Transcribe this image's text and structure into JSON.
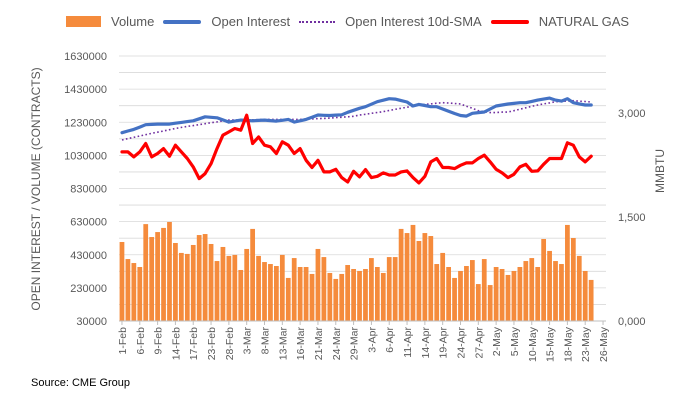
{
  "legend": {
    "volume": "Volume",
    "open_interest": "Open Interest",
    "sma": "Open Interest 10d-SMA",
    "price": "NATURAL GAS"
  },
  "source": "Source: CME Group",
  "chart_data": {
    "type": "bar+line",
    "title": "",
    "ylabel_left": "OPEN INTEREST / VOLUME (CONTRACTS)",
    "ylabel_right": "MMBTU",
    "ylim_left": [
      30000,
      1630000
    ],
    "ylim_right": [
      0,
      3825
    ],
    "left_ticks": [
      "1630000",
      "1430000",
      "1230000",
      "1030000",
      "830000",
      "630000",
      "430000",
      "230000",
      "30000"
    ],
    "left_tick_values": [
      1630000,
      1430000,
      1230000,
      1030000,
      830000,
      630000,
      430000,
      230000,
      30000
    ],
    "right_ticks": [
      "3,000",
      "1,500",
      "0,000"
    ],
    "right_tick_values": [
      3000,
      1500,
      0
    ],
    "x_tick_labels": [
      "1-Feb",
      "6-Feb",
      "9-Feb",
      "14-Feb",
      "17-Feb",
      "23-Feb",
      "28-Feb",
      "3-Mar",
      "8-Mar",
      "13-Mar",
      "16-Mar",
      "21-Mar",
      "24-Mar",
      "29-Mar",
      "3-Apr",
      "6-Apr",
      "11-Apr",
      "14-Apr",
      "19-Apr",
      "24-Apr",
      "27-Apr",
      "2-May",
      "5-May",
      "10-May",
      "15-May",
      "18-May",
      "23-May",
      "26-May"
    ],
    "grid": true,
    "legend_position": "top",
    "colors": {
      "volume": "#f58b3c",
      "open_interest": "#4472c4",
      "sma": "#7030a0",
      "price": "#ff0000",
      "grid": "#d9d9d9"
    },
    "series": [
      {
        "name": "Volume",
        "type": "bar",
        "axis": "left",
        "values": [
          507000,
          404000,
          380000,
          356000,
          615000,
          537000,
          567000,
          592000,
          628000,
          501000,
          441000,
          435000,
          489000,
          549000,
          555000,
          495000,
          392000,
          477000,
          423000,
          429000,
          338000,
          465000,
          586000,
          423000,
          386000,
          374000,
          362000,
          429000,
          290000,
          410000,
          356000,
          356000,
          314000,
          465000,
          416000,
          320000,
          284000,
          314000,
          368000,
          344000,
          332000,
          344000,
          410000,
          356000,
          320000,
          416000,
          416000,
          586000,
          561000,
          610000,
          513000,
          561000,
          543000,
          374000,
          441000,
          356000,
          290000,
          332000,
          362000,
          398000,
          253000,
          404000,
          247000,
          356000,
          344000,
          308000,
          332000,
          356000,
          392000,
          410000,
          356000,
          525000,
          453000,
          392000,
          374000,
          610000,
          531000,
          423000,
          332000,
          278000
        ]
      },
      {
        "name": "Open Interest",
        "type": "line",
        "axis": "left",
        "values": [
          1167000,
          1177000,
          1187000,
          1201000,
          1215000,
          1217000,
          1219000,
          1219000,
          1219000,
          1224000,
          1229000,
          1234000,
          1239000,
          1251000,
          1263000,
          1260000,
          1257000,
          1244000,
          1231000,
          1237000,
          1243000,
          1241000,
          1239000,
          1241000,
          1243000,
          1240000,
          1237000,
          1242000,
          1247000,
          1231000,
          1239000,
          1247000,
          1260000,
          1274000,
          1272000,
          1271000,
          1273000,
          1275000,
          1290000,
          1302000,
          1314000,
          1324000,
          1339000,
          1354000,
          1363000,
          1372000,
          1370000,
          1361000,
          1352000,
          1328000,
          1338000,
          1331000,
          1324000,
          1324000,
          1310000,
          1296000,
          1283000,
          1271000,
          1267000,
          1284000,
          1288000,
          1292000,
          1310000,
          1328000,
          1334000,
          1340000,
          1344000,
          1348000,
          1348000,
          1356000,
          1364000,
          1370000,
          1376000,
          1364000,
          1358000,
          1372000,
          1348000,
          1341000,
          1334000,
          1334000
        ]
      },
      {
        "name": "Open Interest 10d-SMA",
        "type": "line",
        "axis": "left",
        "values": [
          1123000,
          1131000,
          1139000,
          1147000,
          1155000,
          1163000,
          1170000,
          1177000,
          1185000,
          1192000,
          1199000,
          1205000,
          1210000,
          1216000,
          1221000,
          1227000,
          1232000,
          1238000,
          1243000,
          1244000,
          1244000,
          1245000,
          1245000,
          1246000,
          1246000,
          1247000,
          1247000,
          1247000,
          1247000,
          1247000,
          1247000,
          1249000,
          1250000,
          1252000,
          1253000,
          1255000,
          1258000,
          1260000,
          1263000,
          1266000,
          1274000,
          1278000,
          1284000,
          1289000,
          1294000,
          1301000,
          1308000,
          1314000,
          1321000,
          1327000,
          1334000,
          1338000,
          1341000,
          1345000,
          1348000,
          1346000,
          1343000,
          1341000,
          1327000,
          1314000,
          1300000,
          1294000,
          1288000,
          1289000,
          1291000,
          1292000,
          1300000,
          1309000,
          1317000,
          1326000,
          1334000,
          1341000,
          1347000,
          1354000,
          1356000,
          1358000,
          1360000,
          1357000,
          1355000,
          1352000
        ]
      },
      {
        "name": "NATURAL GAS",
        "type": "line",
        "axis": "right",
        "values": [
          2441,
          2441,
          2368,
          2441,
          2562,
          2368,
          2417,
          2489,
          2378,
          2538,
          2441,
          2345,
          2224,
          2055,
          2128,
          2272,
          2489,
          2682,
          2730,
          2778,
          2754,
          2971,
          2562,
          2658,
          2538,
          2514,
          2417,
          2586,
          2538,
          2417,
          2489,
          2320,
          2215,
          2320,
          2152,
          2152,
          2190,
          2070,
          2007,
          2161,
          2080,
          2185,
          2070,
          2089,
          2137,
          2108,
          2108,
          2152,
          2166,
          2070,
          1993,
          2089,
          2296,
          2345,
          2215,
          2215,
          2200,
          2248,
          2282,
          2282,
          2345,
          2393,
          2296,
          2190,
          2137,
          2070,
          2118,
          2224,
          2262,
          2161,
          2166,
          2262,
          2345,
          2345,
          2345,
          2572,
          2538,
          2368,
          2296,
          2378
        ]
      }
    ]
  }
}
